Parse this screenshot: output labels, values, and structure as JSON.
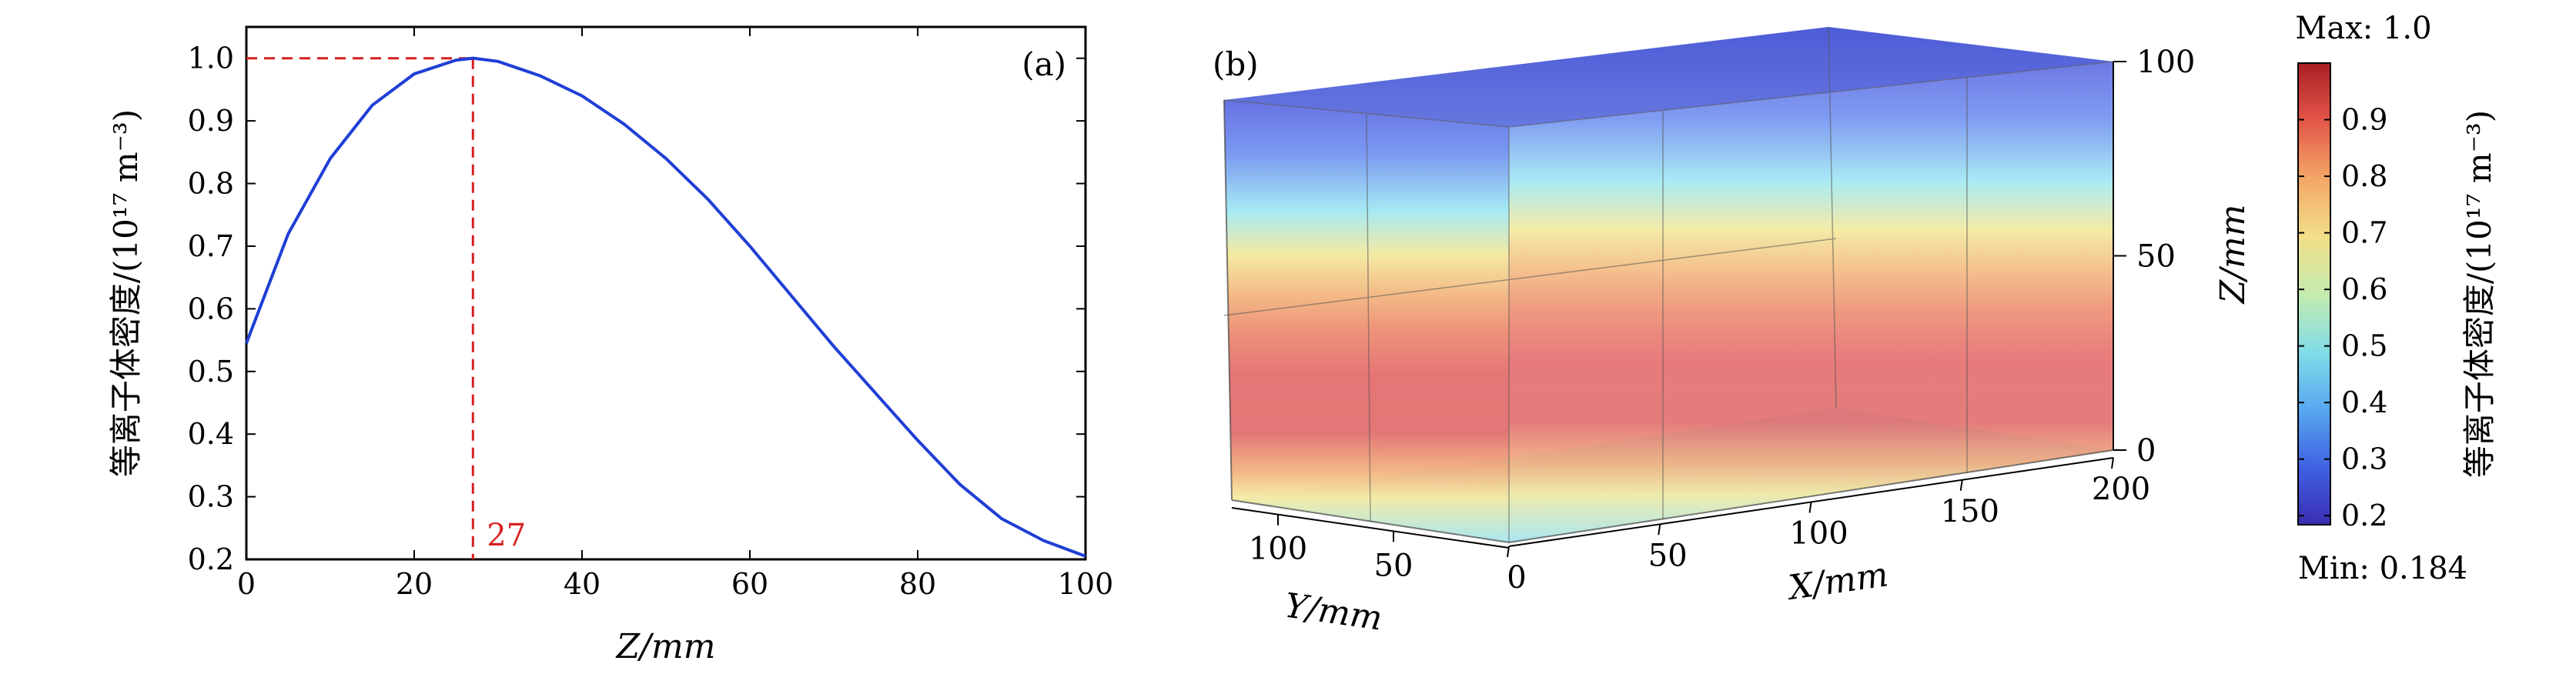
{
  "chart_data": [
    {
      "panel": "(a)",
      "type": "line",
      "xlabel": "Z/mm",
      "ylabel": "等离子体密度/(10¹⁷ m⁻³)",
      "xlim": [
        0,
        100
      ],
      "ylim": [
        0.2,
        1.05
      ],
      "xticks": [
        "0",
        "20",
        "40",
        "60",
        "80",
        "100"
      ],
      "yticks": [
        "0.2",
        "0.3",
        "0.4",
        "0.5",
        "0.6",
        "0.7",
        "0.8",
        "0.9",
        "1.0"
      ],
      "series": [
        {
          "color": "#1f3fd6",
          "x": [
            0,
            5,
            10,
            15,
            20,
            25,
            27,
            30,
            35,
            40,
            45,
            50,
            55,
            60,
            65,
            70,
            75,
            80,
            85,
            90,
            95,
            100
          ],
          "y": [
            0.545,
            0.72,
            0.84,
            0.925,
            0.975,
            0.997,
            1.0,
            0.995,
            0.972,
            0.94,
            0.895,
            0.84,
            0.775,
            0.7,
            0.62,
            0.54,
            0.465,
            0.39,
            0.32,
            0.265,
            0.23,
            0.205
          ]
        }
      ],
      "peak_marker": {
        "x": 27,
        "y": 1.0,
        "label": "27",
        "color": "#d62020"
      },
      "grid": false,
      "legend": "none"
    },
    {
      "panel": "(b)",
      "type": "heatmap",
      "projection": "3d-volume",
      "xlabel": "X/mm",
      "ylabel": "Y/mm",
      "zlabel": "Z/mm",
      "xticks": [
        "0",
        "50",
        "100",
        "150",
        "200"
      ],
      "yticks": [
        "50",
        "100"
      ],
      "zticks": [
        "0",
        "50",
        "100"
      ],
      "x_range": [
        0,
        200
      ],
      "y_range": [
        0,
        120
      ],
      "z_range": [
        0,
        100
      ],
      "colormap": "jet",
      "colorbar": {
        "label": "等离子体密度/(10¹⁷ m⁻³)",
        "max_text": "Max: 1.0",
        "min_text": "Min: 0.184",
        "min": 0.184,
        "max": 1.0,
        "ticks": [
          "0.2",
          "0.3",
          "0.4",
          "0.5",
          "0.6",
          "0.7",
          "0.8",
          "0.9"
        ]
      }
    }
  ]
}
